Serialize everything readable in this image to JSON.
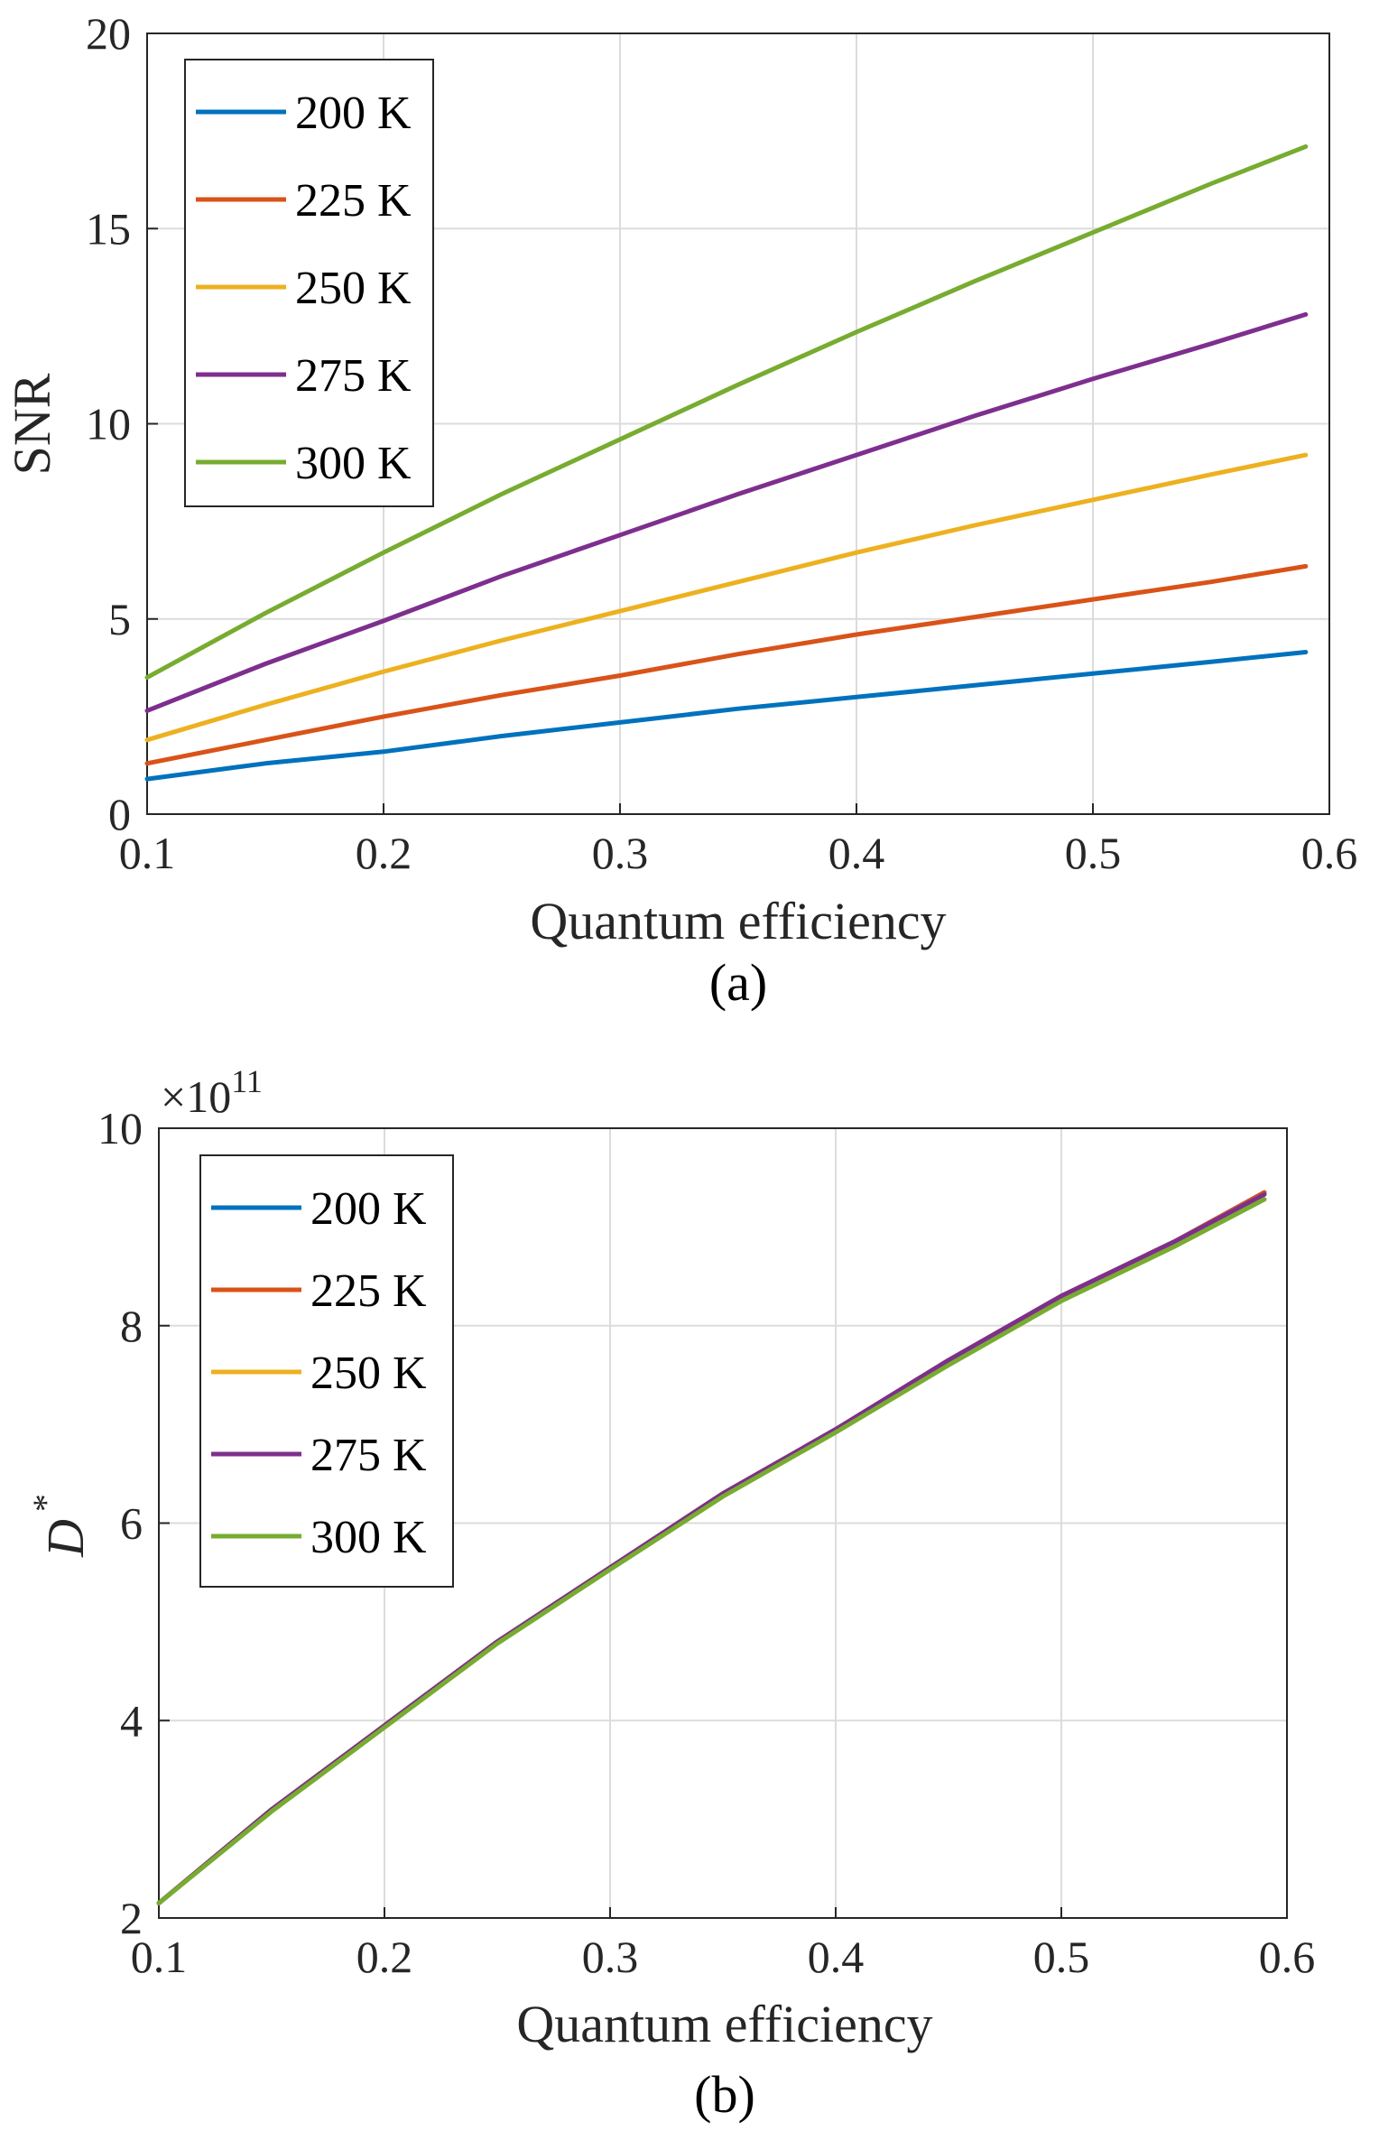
{
  "chart_data": [
    {
      "type": "line",
      "caption": "(a)",
      "xlabel": "Quantum efficiency",
      "ylabel": "SNR",
      "xlim": [
        0.1,
        0.6
      ],
      "ylim": [
        0,
        20
      ],
      "xticks": [
        "0.1",
        "0.2",
        "0.3",
        "0.4",
        "0.5",
        "0.6"
      ],
      "yticks": [
        "0",
        "5",
        "10",
        "15",
        "20"
      ],
      "grid": true,
      "legend": "top-left",
      "x": [
        0.1,
        0.15,
        0.2,
        0.25,
        0.3,
        0.35,
        0.4,
        0.45,
        0.5,
        0.55,
        0.59
      ],
      "series": [
        {
          "name": "200 K",
          "color": "#0072BD",
          "values": [
            0.9,
            1.3,
            1.6,
            2.0,
            2.35,
            2.7,
            3.0,
            3.3,
            3.6,
            3.9,
            4.15
          ]
        },
        {
          "name": "225 K",
          "color": "#D95319",
          "values": [
            1.3,
            1.9,
            2.5,
            3.05,
            3.55,
            4.1,
            4.6,
            5.05,
            5.5,
            5.95,
            6.35
          ]
        },
        {
          "name": "250 K",
          "color": "#EDB120",
          "values": [
            1.9,
            2.8,
            3.65,
            4.45,
            5.2,
            5.95,
            6.7,
            7.4,
            8.05,
            8.7,
            9.2
          ]
        },
        {
          "name": "275 K",
          "color": "#7E2F8E",
          "values": [
            2.65,
            3.85,
            4.95,
            6.1,
            7.15,
            8.2,
            9.2,
            10.2,
            11.15,
            12.05,
            12.8
          ]
        },
        {
          "name": "300 K",
          "color": "#77AC30",
          "values": [
            3.5,
            5.15,
            6.7,
            8.2,
            9.6,
            11.0,
            12.35,
            13.65,
            14.9,
            16.15,
            17.1
          ]
        }
      ]
    },
    {
      "type": "line",
      "caption": "(b)",
      "xlabel": "Quantum efficiency",
      "ylabel": "D",
      "ylabel_sup": "*",
      "exponent_label": "×10",
      "exponent_power": "11",
      "xlim": [
        0.1,
        0.6
      ],
      "ylim": [
        2,
        10
      ],
      "xticks": [
        "0.1",
        "0.2",
        "0.3",
        "0.4",
        "0.5",
        "0.6"
      ],
      "yticks": [
        "2",
        "4",
        "6",
        "8",
        "10"
      ],
      "grid": true,
      "legend": "top-left",
      "x": [
        0.1,
        0.15,
        0.2,
        0.25,
        0.3,
        0.35,
        0.4,
        0.45,
        0.5,
        0.55,
        0.59
      ],
      "series": [
        {
          "name": "200 K",
          "color": "#0072BD",
          "values": [
            2.15,
            3.1,
            3.95,
            4.8,
            5.55,
            6.3,
            6.95,
            7.65,
            8.3,
            8.85,
            9.35
          ]
        },
        {
          "name": "225 K",
          "color": "#D95319",
          "values": [
            2.15,
            3.1,
            3.95,
            4.8,
            5.55,
            6.3,
            6.95,
            7.65,
            8.3,
            8.85,
            9.35
          ]
        },
        {
          "name": "250 K",
          "color": "#EDB120",
          "values": [
            2.15,
            3.1,
            3.95,
            4.8,
            5.55,
            6.3,
            6.95,
            7.65,
            8.3,
            8.85,
            9.33
          ]
        },
        {
          "name": "275 K",
          "color": "#7E2F8E",
          "values": [
            2.15,
            3.1,
            3.95,
            4.8,
            5.55,
            6.3,
            6.95,
            7.65,
            8.3,
            8.85,
            9.33
          ]
        },
        {
          "name": "300 K",
          "color": "#77AC30",
          "values": [
            2.15,
            3.08,
            3.93,
            4.78,
            5.53,
            6.27,
            6.92,
            7.6,
            8.25,
            8.8,
            9.28
          ]
        }
      ]
    }
  ]
}
